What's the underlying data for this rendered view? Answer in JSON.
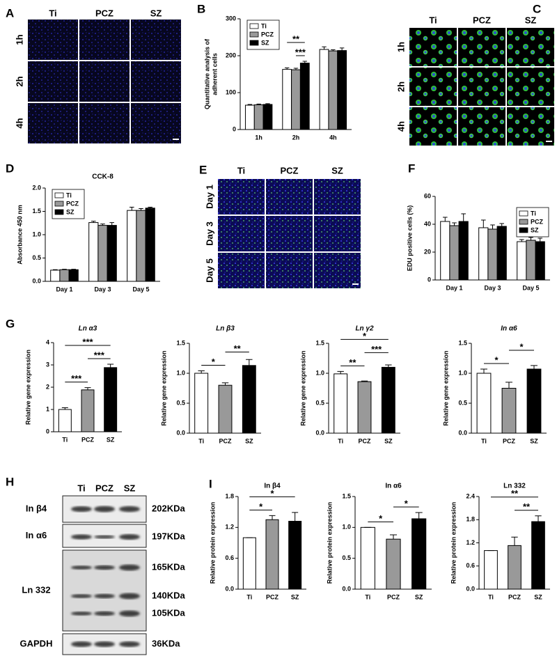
{
  "images": [
    {
      "panel": "A",
      "columns": [
        "Ti",
        "PCZ",
        "SZ"
      ],
      "rows": [
        "1h",
        "2h",
        "4h"
      ]
    },
    {
      "panel": "C",
      "columns": [
        "Ti",
        "PCZ",
        "SZ"
      ],
      "rows": [
        "1h",
        "2h",
        "4h"
      ]
    },
    {
      "panel": "E",
      "columns": [
        "Ti",
        "PCZ",
        "SZ"
      ],
      "rows": [
        "Day 1",
        "Day 3",
        "Day 5"
      ]
    }
  ],
  "blot": {
    "panel": "H",
    "columns": [
      "Ti",
      "PCZ",
      "SZ"
    ],
    "rows": [
      "In β4",
      "In α6",
      "Ln 332",
      "GAPDH"
    ],
    "sizes": [
      "202KDa",
      "197KDa",
      "165KDa",
      "140KDa",
      "105KDa",
      "36KDa"
    ]
  },
  "chart_data": [
    {
      "panel": "B",
      "type": "bar",
      "ylabel": [
        "Quantitative analysis  of",
        "adherent cells"
      ],
      "categories": [
        "1h",
        "2h",
        "4h"
      ],
      "series": [
        {
          "name": "Ti",
          "color": "#ffffff",
          "values": [
            66,
            163,
            217
          ],
          "errors": [
            2,
            4,
            7
          ]
        },
        {
          "name": "PCZ",
          "color": "#999999",
          "values": [
            67,
            162,
            213
          ],
          "errors": [
            2,
            4,
            3
          ]
        },
        {
          "name": "SZ",
          "color": "#000000",
          "values": [
            68,
            180,
            214
          ],
          "errors": [
            2,
            5,
            7
          ]
        }
      ],
      "ylim": [
        0,
        300
      ],
      "yticks": [
        0,
        100,
        200,
        300
      ],
      "legend": "upper left",
      "significance": [
        {
          "category": "2h",
          "between": [
            "PCZ",
            "SZ"
          ],
          "label": "***"
        },
        {
          "category": "2h",
          "between": [
            "Ti",
            "SZ"
          ],
          "label": "**"
        }
      ]
    },
    {
      "panel": "D",
      "type": "bar",
      "title": "CCK-8",
      "ylabel": [
        "Absorbance 450 nm"
      ],
      "categories": [
        "Day 1",
        "Day 3",
        "Day 5"
      ],
      "series": [
        {
          "name": "Ti",
          "color": "#ffffff",
          "values": [
            0.24,
            1.26,
            1.52
          ],
          "errors": [
            0.01,
            0.03,
            0.07
          ]
        },
        {
          "name": "PCZ",
          "color": "#999999",
          "values": [
            0.25,
            1.2,
            1.52
          ],
          "errors": [
            0.01,
            0.03,
            0.04
          ]
        },
        {
          "name": "SZ",
          "color": "#000000",
          "values": [
            0.25,
            1.2,
            1.57
          ],
          "errors": [
            0.01,
            0.06,
            0.02
          ]
        }
      ],
      "ylim": [
        0,
        2
      ],
      "yticks": [
        {
          "value": 0,
          "label": "0.0"
        },
        0.5,
        {
          "value": 1,
          "label": "1.0"
        },
        1.5,
        {
          "value": 2,
          "label": "2.0"
        }
      ],
      "legend": "upper left"
    },
    {
      "panel": "F",
      "type": "bar",
      "ylabel": [
        "EDU positive cells (%)"
      ],
      "categories": [
        "Day 1",
        "Day 3",
        "Day 5"
      ],
      "series": [
        {
          "name": "Ti",
          "color": "#ffffff",
          "values": [
            42,
            37.5,
            27.5
          ],
          "errors": [
            3,
            5.5,
            1.5
          ]
        },
        {
          "name": "PCZ",
          "color": "#999999",
          "values": [
            39,
            36.5,
            28.5
          ],
          "errors": [
            2,
            3,
            2
          ]
        },
        {
          "name": "SZ",
          "color": "#000000",
          "values": [
            42,
            38.5,
            27.5
          ],
          "errors": [
            5.5,
            2,
            2.5
          ]
        }
      ],
      "ylim": [
        0,
        60
      ],
      "yticks": [
        0,
        20,
        40,
        60
      ],
      "legend": "upper right"
    },
    {
      "panel": "G",
      "type": "bar",
      "title": "Ln α3",
      "title_style": "italic",
      "ylabel": [
        "Relative gene expression"
      ],
      "categories": [
        "Ti",
        "PCZ",
        "SZ"
      ],
      "values": [
        1.0,
        1.88,
        2.88
      ],
      "errors": [
        0.08,
        0.1,
        0.15
      ],
      "colors": [
        "#ffffff",
        "#999999",
        "#000000"
      ],
      "ylim": [
        0,
        4
      ],
      "yticks": [
        0,
        1,
        2,
        3,
        4
      ],
      "significance": [
        {
          "between": [
            "Ti",
            "PCZ"
          ],
          "label": "***"
        },
        {
          "between": [
            "PCZ",
            "SZ"
          ],
          "label": "***"
        },
        {
          "between": [
            "Ti",
            "SZ"
          ],
          "label": "***"
        }
      ]
    },
    {
      "type": "bar",
      "title": "Ln β3",
      "title_style": "italic",
      "ylabel": [
        "Relative gene expression"
      ],
      "categories": [
        "Ti",
        "PCZ",
        "SZ"
      ],
      "values": [
        1.0,
        0.8,
        1.13
      ],
      "errors": [
        0.04,
        0.04,
        0.1
      ],
      "colors": [
        "#ffffff",
        "#999999",
        "#000000"
      ],
      "ylim": [
        0,
        1.5
      ],
      "yticks": [
        {
          "value": 0,
          "label": "0.0"
        },
        0.5,
        {
          "value": 1,
          "label": "1.0"
        },
        1.5
      ],
      "significance": [
        {
          "between": [
            "Ti",
            "PCZ"
          ],
          "label": "*"
        },
        {
          "between": [
            "PCZ",
            "SZ"
          ],
          "label": "**"
        }
      ]
    },
    {
      "type": "bar",
      "title": "Ln γ2",
      "title_style": "italic",
      "ylabel": [
        "Relative gene expression"
      ],
      "categories": [
        "Ti",
        "PCZ",
        "SZ"
      ],
      "values": [
        0.99,
        0.86,
        1.1
      ],
      "errors": [
        0.04,
        0.01,
        0.04
      ],
      "colors": [
        "#ffffff",
        "#999999",
        "#000000"
      ],
      "ylim": [
        0,
        1.5
      ],
      "yticks": [
        {
          "value": 0,
          "label": "0.0"
        },
        0.5,
        {
          "value": 1,
          "label": "1.0"
        },
        1.5
      ],
      "significance": [
        {
          "between": [
            "Ti",
            "PCZ"
          ],
          "label": "**"
        },
        {
          "between": [
            "PCZ",
            "SZ"
          ],
          "label": "***"
        },
        {
          "between": [
            "Ti",
            "SZ"
          ],
          "label": "*"
        }
      ]
    },
    {
      "type": "bar",
      "title": "In α6",
      "title_style": "italic",
      "ylabel": [
        "Relative gene expression"
      ],
      "categories": [
        "Ti",
        "PCZ",
        "SZ"
      ],
      "values": [
        1.0,
        0.75,
        1.07
      ],
      "errors": [
        0.07,
        0.1,
        0.06
      ],
      "colors": [
        "#ffffff",
        "#999999",
        "#000000"
      ],
      "ylim": [
        0,
        1.5
      ],
      "yticks": [
        {
          "value": 0,
          "label": "0.0"
        },
        0.5,
        {
          "value": 1,
          "label": "1.0"
        },
        1.5
      ],
      "significance": [
        {
          "between": [
            "Ti",
            "PCZ"
          ],
          "label": "*"
        },
        {
          "between": [
            "PCZ",
            "SZ"
          ],
          "label": "*"
        }
      ]
    },
    {
      "panel": "I",
      "type": "bar",
      "title": "In β4",
      "ylabel": [
        "Relative protein expression"
      ],
      "categories": [
        "Ti",
        "PCZ",
        "SZ"
      ],
      "values": [
        1.0,
        1.35,
        1.32
      ],
      "errors": [
        0,
        0.08,
        0.17
      ],
      "colors": [
        "#ffffff",
        "#999999",
        "#000000"
      ],
      "ylim": [
        0,
        1.8
      ],
      "yticks": [
        {
          "value": 0,
          "label": "0.0"
        },
        0.6,
        1.2,
        1.8
      ],
      "significance": [
        {
          "between": [
            "Ti",
            "PCZ"
          ],
          "label": "*"
        },
        {
          "between": [
            "Ti",
            "SZ"
          ],
          "label": "*"
        }
      ]
    },
    {
      "type": "bar",
      "title": "In α6",
      "ylabel": [
        "Relative protein expression"
      ],
      "categories": [
        "Ti",
        "PCZ",
        "SZ"
      ],
      "values": [
        1.0,
        0.81,
        1.14
      ],
      "errors": [
        0,
        0.07,
        0.1
      ],
      "colors": [
        "#ffffff",
        "#999999",
        "#000000"
      ],
      "ylim": [
        0,
        1.5
      ],
      "yticks": [
        {
          "value": 0,
          "label": "0.0"
        },
        0.5,
        {
          "value": 1,
          "label": "1.0"
        },
        1.5
      ],
      "significance": [
        {
          "between": [
            "Ti",
            "PCZ"
          ],
          "label": "*"
        },
        {
          "between": [
            "PCZ",
            "SZ"
          ],
          "label": "*"
        }
      ]
    },
    {
      "type": "bar",
      "title": "Ln 332",
      "ylabel": [
        "Relative protein expression"
      ],
      "categories": [
        "Ti",
        "PCZ",
        "SZ"
      ],
      "values": [
        1.0,
        1.13,
        1.75
      ],
      "errors": [
        0,
        0.22,
        0.15
      ],
      "colors": [
        "#ffffff",
        "#999999",
        "#000000"
      ],
      "ylim": [
        0,
        2.4
      ],
      "yticks": [
        {
          "value": 0,
          "label": "0.0"
        },
        0.6,
        1.2,
        1.8,
        2.4
      ],
      "significance": [
        {
          "between": [
            "PCZ",
            "SZ"
          ],
          "label": "**"
        },
        {
          "between": [
            "Ti",
            "SZ"
          ],
          "label": "**"
        }
      ]
    }
  ]
}
